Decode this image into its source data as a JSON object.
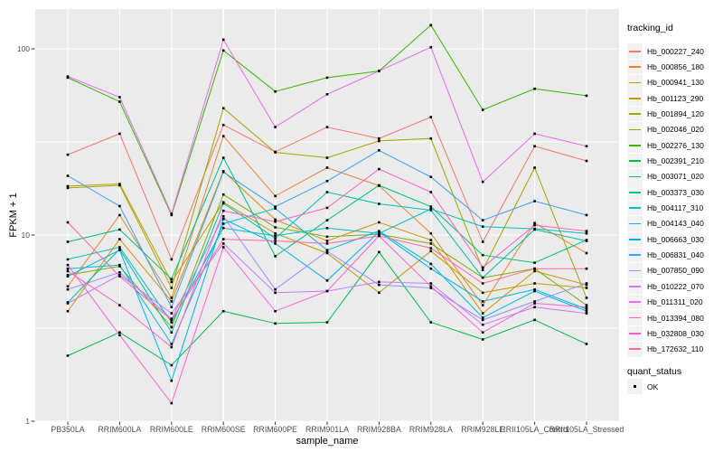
{
  "chart_data": {
    "type": "line",
    "title": "",
    "xlabel": "sample_name",
    "ylabel": "FPKM + 1",
    "y_scale": "log10",
    "y_ticks": [
      1,
      10,
      100
    ],
    "ylim": [
      1,
      163
    ],
    "grid": true,
    "legend_position": "right",
    "point_shape": "square",
    "point_color": "#000000",
    "categories": [
      "PB350LA",
      "RRIM600LA",
      "RRIM600LE",
      "RRIM600SE",
      "RRIM600PE",
      "RRIM901LA",
      "RRIM928BA",
      "RRIM928LA",
      "RRIM928LE",
      "RRII105LA_Control",
      "RRII105LA_Stressed"
    ],
    "series": [
      {
        "name": "Hb_000227_240",
        "color": "#F8766D",
        "values": [
          27,
          35,
          7.4,
          39,
          28,
          38,
          33,
          43,
          9.2,
          30,
          25
        ]
      },
      {
        "name": "Hb_000856_180",
        "color": "#EA8331",
        "values": [
          5.3,
          12.8,
          4.6,
          34,
          16.2,
          23,
          18.4,
          10.2,
          4.2,
          11.6,
          8.0
        ]
      },
      {
        "name": "Hb_000941_130",
        "color": "#D89000",
        "values": [
          3.9,
          9.5,
          4.4,
          22,
          12.1,
          9.3,
          11.7,
          9.4,
          3.8,
          6.4,
          5.4
        ]
      },
      {
        "name": "Hb_001123_290",
        "color": "#C09B00",
        "values": [
          18.3,
          18.8,
          5.6,
          15,
          10.2,
          8.0,
          4.9,
          8.2,
          4.9,
          5.5,
          5.2
        ]
      },
      {
        "name": "Hb_001894_120",
        "color": "#A3A500",
        "values": [
          17.9,
          18.5,
          5.2,
          48,
          27.8,
          26,
          32,
          33,
          6.5,
          23,
          4.6
        ]
      },
      {
        "name": "Hb_002046_020",
        "color": "#7CAE00",
        "values": [
          6.1,
          6.8,
          3.2,
          16.5,
          11.0,
          9.8,
          10.1,
          9.0,
          5.9,
          6.6,
          4.2
        ]
      },
      {
        "name": "Hb_002276_130",
        "color": "#39B600",
        "values": [
          70,
          52,
          12.8,
          98,
          59,
          70,
          76,
          134,
          47,
          61,
          56
        ]
      },
      {
        "name": "Hb_002391_210",
        "color": "#00BB4E",
        "values": [
          2.25,
          3.0,
          2.0,
          3.9,
          3.35,
          3.4,
          8.1,
          3.4,
          2.75,
          3.5,
          2.6
        ]
      },
      {
        "name": "Hb_003071_020",
        "color": "#00BF7D",
        "values": [
          9.2,
          10.7,
          5.8,
          26,
          7.7,
          12.0,
          18.5,
          14.2,
          7.8,
          7.1,
          9.4
        ]
      },
      {
        "name": "Hb_003373_030",
        "color": "#00C1A3",
        "values": [
          4.35,
          8.4,
          3.0,
          14.8,
          9.6,
          17.0,
          14.7,
          13.6,
          5.9,
          10.7,
          9.3
        ]
      },
      {
        "name": "Hb_004117_310",
        "color": "#00BFC4",
        "values": [
          7.4,
          8.6,
          3.4,
          10.9,
          9.9,
          10.9,
          10.2,
          13.8,
          11.1,
          10.8,
          10.2
        ]
      },
      {
        "name": "Hb_004143_040",
        "color": "#00BAE0",
        "values": [
          6.6,
          6.9,
          2.6,
          11.5,
          13.9,
          8.3,
          10.5,
          7.0,
          3.6,
          5.0,
          3.9
        ]
      },
      {
        "name": "Hb_006663_030",
        "color": "#00B0F6",
        "values": [
          6.0,
          8.3,
          1.65,
          12.2,
          9.0,
          5.7,
          10.4,
          6.6,
          4.4,
          5.1,
          4.0
        ]
      },
      {
        "name": "Hb_006831_040",
        "color": "#35A2FF",
        "values": [
          20.8,
          14.3,
          4.1,
          21.8,
          14.2,
          19.5,
          28.5,
          20.5,
          12.0,
          15.2,
          12.8
        ]
      },
      {
        "name": "Hb_007850_090",
        "color": "#9590FF",
        "values": [
          5.1,
          6.3,
          3.55,
          12.6,
          5.1,
          8.2,
          5.4,
          5.2,
          3.5,
          4.4,
          5.5
        ]
      },
      {
        "name": "Hb_010222_070",
        "color": "#C77CFF",
        "values": [
          4.3,
          6.1,
          3.8,
          9.0,
          4.9,
          5.0,
          5.6,
          5.5,
          3.3,
          4.1,
          3.8
        ]
      },
      {
        "name": "Hb_011311_020",
        "color": "#E76BF3",
        "values": [
          71,
          55,
          13.0,
          112,
          38,
          57,
          76,
          102,
          19.3,
          35,
          30
        ]
      },
      {
        "name": "Hb_013394_080",
        "color": "#FA62DB",
        "values": [
          6.9,
          2.9,
          1.25,
          8.6,
          3.9,
          5.0,
          9.9,
          5.3,
          3.0,
          4.3,
          4.1
        ]
      },
      {
        "name": "Hb_032808_030",
        "color": "#FF61C3",
        "values": [
          6.4,
          4.2,
          2.5,
          13.5,
          11.8,
          14.0,
          22.6,
          17.0,
          6.7,
          11.3,
          10.5
        ]
      },
      {
        "name": "Hb_172632_110",
        "color": "#FF68A1",
        "values": [
          11.7,
          6.0,
          3.5,
          9.5,
          9.3,
          9.0,
          9.9,
          8.5,
          5.5,
          6.6,
          6.6
        ]
      }
    ]
  },
  "legend": {
    "tracking_title": "tracking_id",
    "quant_title": "quant_status",
    "quant_items": [
      {
        "label": "OK"
      }
    ]
  },
  "colors": {
    "panel_bg": "#EBEBEB",
    "grid": "#FFFFFF",
    "axis_text": "#4D4D4D",
    "tick": "#333333",
    "legend_key_bg": "#F2F2F2"
  }
}
